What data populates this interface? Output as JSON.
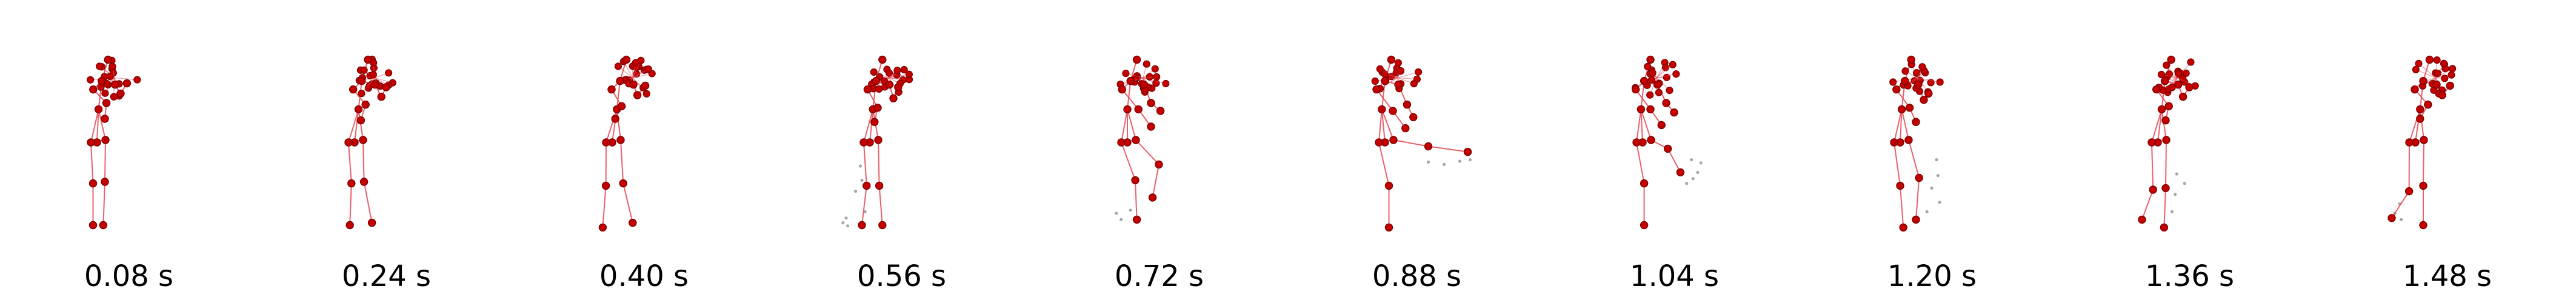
{
  "colors": {
    "bone": "#e8505a",
    "joint": "#c40000",
    "joint_edge": "#7a0000",
    "ghost": "#8a8a8a"
  },
  "frames": [
    {
      "label": "0.08 s",
      "pose": {
        "hip": [
          0.0,
          0.0
        ],
        "lean": 0.02,
        "l_knee": [
          -0.05,
          0.52
        ],
        "l_foot": [
          -0.05,
          1.05
        ],
        "r_knee": [
          0.1,
          0.5
        ],
        "r_foot": [
          0.08,
          1.05
        ],
        "l_elbow": [
          0.12,
          -0.5
        ],
        "l_hand": [
          0.1,
          -0.3
        ],
        "r_elbow": [
          0.3,
          -0.62
        ],
        "r_hand": [
          0.38,
          -0.75
        ],
        "cluster": 0
      }
    },
    {
      "label": "0.24 s",
      "pose": {
        "hip": [
          0.0,
          0.0
        ],
        "lean": 0.05,
        "l_knee": [
          -0.04,
          0.52
        ],
        "l_foot": [
          -0.06,
          1.05
        ],
        "r_knee": [
          0.12,
          0.5
        ],
        "r_foot": [
          0.22,
          1.02
        ],
        "l_elbow": [
          0.14,
          -0.48
        ],
        "l_hand": [
          0.08,
          -0.28
        ],
        "r_elbow": [
          0.34,
          -0.58
        ],
        "r_hand": [
          0.4,
          -0.7
        ],
        "cluster": 1
      }
    },
    {
      "label": "0.40 s",
      "pose": {
        "hip": [
          0.0,
          0.0
        ],
        "lean": 0.06,
        "l_knee": [
          -0.08,
          0.55
        ],
        "l_foot": [
          -0.12,
          1.08
        ],
        "r_knee": [
          0.14,
          0.52
        ],
        "r_foot": [
          0.26,
          1.02
        ],
        "l_elbow": [
          0.12,
          -0.46
        ],
        "l_hand": [
          0.04,
          -0.3
        ],
        "r_elbow": [
          0.32,
          -0.6
        ],
        "r_hand": [
          0.42,
          -0.72
        ],
        "cluster": 2
      }
    },
    {
      "label": "0.56 s",
      "pose": {
        "hip": [
          0.0,
          0.0
        ],
        "lean": 0.04,
        "l_knee": [
          -0.04,
          0.55
        ],
        "l_foot": [
          -0.1,
          1.05
        ],
        "r_knee": [
          0.12,
          0.55
        ],
        "r_foot": [
          0.16,
          1.05
        ],
        "l_elbow": [
          0.1,
          -0.44
        ],
        "l_hand": [
          0.06,
          -0.26
        ],
        "r_elbow": [
          0.3,
          -0.56
        ],
        "r_hand": [
          0.36,
          -0.7
        ],
        "cluster": 3,
        "ghost": [
          [
            -0.12,
            0.3
          ],
          [
            -0.1,
            0.48
          ],
          [
            -0.18,
            0.62
          ],
          [
            -0.3,
            0.96
          ],
          [
            -0.34,
            1.02
          ],
          [
            -0.28,
            1.06
          ],
          [
            -0.06,
            0.88
          ]
        ]
      }
    },
    {
      "label": "0.72 s",
      "pose": {
        "hip": [
          0.0,
          0.0
        ],
        "lean": 0.0,
        "l_knee": [
          0.1,
          0.48
        ],
        "l_foot": [
          0.12,
          0.98
        ],
        "r_knee": [
          0.4,
          0.28
        ],
        "r_foot": [
          0.32,
          0.7
        ],
        "l_elbow": [
          0.14,
          -0.42
        ],
        "l_hand": [
          0.3,
          -0.2
        ],
        "r_elbow": [
          0.3,
          -0.5
        ],
        "r_hand": [
          0.42,
          -0.4
        ],
        "cluster": 4,
        "ghost": [
          [
            -0.14,
            0.9
          ],
          [
            -0.08,
            0.98
          ],
          [
            0.04,
            0.86
          ]
        ]
      }
    },
    {
      "label": "0.88 s",
      "pose": {
        "hip": [
          0.0,
          0.0
        ],
        "lean": -0.04,
        "l_knee": [
          0.05,
          0.55
        ],
        "l_foot": [
          0.05,
          1.08
        ],
        "r_knee": [
          0.55,
          0.05
        ],
        "r_foot": [
          1.05,
          0.12
        ],
        "l_elbow": [
          0.1,
          -0.4
        ],
        "l_hand": [
          0.26,
          -0.18
        ],
        "r_elbow": [
          0.28,
          -0.48
        ],
        "r_hand": [
          0.36,
          -0.32
        ],
        "cluster": 5,
        "ghost": [
          [
            0.55,
            0.25
          ],
          [
            0.75,
            0.28
          ],
          [
            0.95,
            0.24
          ],
          [
            1.08,
            0.22
          ]
        ]
      }
    },
    {
      "label": "1.04 s",
      "pose": {
        "hip": [
          0.0,
          0.0
        ],
        "lean": -0.02,
        "l_knee": [
          0.02,
          0.52
        ],
        "l_foot": [
          0.02,
          1.05
        ],
        "r_knee": [
          0.32,
          0.08
        ],
        "r_foot": [
          0.48,
          0.38
        ],
        "l_elbow": [
          0.1,
          -0.42
        ],
        "l_hand": [
          0.24,
          -0.22
        ],
        "r_elbow": [
          0.3,
          -0.5
        ],
        "r_hand": [
          0.4,
          -0.38
        ],
        "cluster": 6,
        "ghost": [
          [
            0.62,
            0.22
          ],
          [
            0.7,
            0.38
          ],
          [
            0.56,
            0.52
          ],
          [
            0.64,
            0.46
          ],
          [
            0.74,
            0.26
          ]
        ]
      }
    },
    {
      "label": "1.20 s",
      "pose": {
        "hip": [
          0.0,
          0.0
        ],
        "lean": 0.02,
        "l_knee": [
          0.0,
          0.55
        ],
        "l_foot": [
          0.04,
          1.08
        ],
        "r_knee": [
          0.24,
          0.45
        ],
        "r_foot": [
          0.2,
          0.98
        ],
        "l_elbow": [
          0.12,
          -0.44
        ],
        "l_hand": [
          0.2,
          -0.26
        ],
        "r_elbow": [
          0.3,
          -0.54
        ],
        "r_hand": [
          0.36,
          -0.62
        ],
        "cluster": 7,
        "ghost": [
          [
            0.46,
            0.22
          ],
          [
            0.48,
            0.42
          ],
          [
            0.4,
            0.58
          ],
          [
            0.5,
            0.76
          ],
          [
            0.34,
            0.88
          ]
        ]
      }
    },
    {
      "label": "1.36 s",
      "pose": {
        "hip": [
          0.0,
          0.0
        ],
        "lean": 0.05,
        "l_knee": [
          -0.06,
          0.6
        ],
        "l_foot": [
          -0.2,
          0.98
        ],
        "r_knee": [
          0.1,
          0.58
        ],
        "r_foot": [
          0.08,
          1.08
        ],
        "l_elbow": [
          0.14,
          -0.46
        ],
        "l_hand": [
          0.1,
          -0.28
        ],
        "r_elbow": [
          0.32,
          -0.58
        ],
        "r_hand": [
          0.4,
          -0.7
        ],
        "cluster": 8,
        "ghost": [
          [
            0.24,
            0.4
          ],
          [
            0.34,
            0.52
          ],
          [
            0.22,
            0.66
          ],
          [
            0.18,
            0.88
          ]
        ]
      }
    },
    {
      "label": "1.48 s",
      "pose": {
        "hip": [
          0.0,
          0.0
        ],
        "lean": 0.06,
        "l_knee": [
          -0.08,
          0.62
        ],
        "l_foot": [
          -0.3,
          0.96
        ],
        "r_knee": [
          0.1,
          0.55
        ],
        "r_foot": [
          0.1,
          1.05
        ],
        "l_elbow": [
          0.16,
          -0.48
        ],
        "l_hand": [
          0.06,
          -0.3
        ],
        "r_elbow": [
          0.34,
          -0.6
        ],
        "r_hand": [
          0.44,
          -0.72
        ],
        "cluster": 9,
        "ghost": [
          [
            -0.2,
            0.78
          ],
          [
            -0.26,
            0.9
          ],
          [
            -0.18,
            0.98
          ]
        ]
      }
    }
  ]
}
